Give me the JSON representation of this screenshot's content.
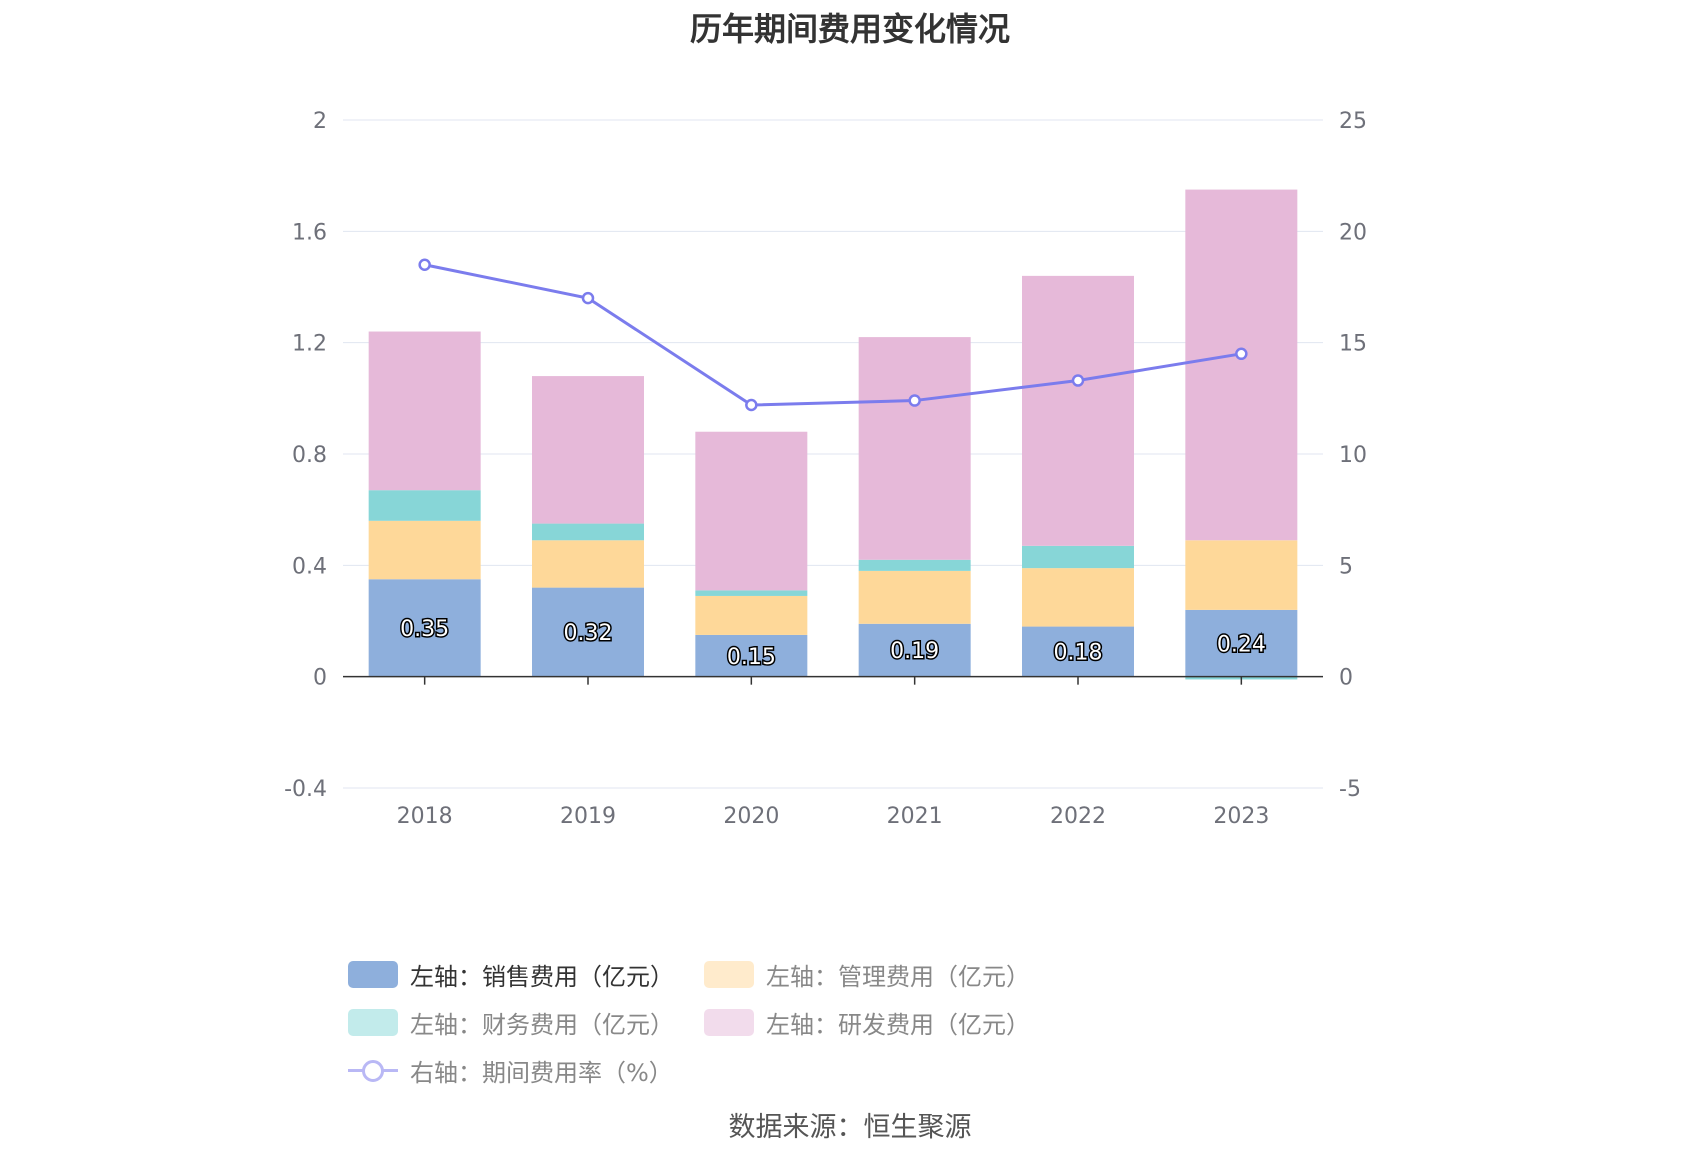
{
  "title": "历年期间费用变化情况",
  "source_text": "数据来源：恒生聚源",
  "colors": {
    "selling": "#8eafdc",
    "admin": "#fed899",
    "finance": "#87d6d7",
    "rnd": "#e6b9d9",
    "rate_line": "#7b7ced",
    "grid": "#e0e6f1",
    "axis": "#333333",
    "legend_admin": "#ffebcc",
    "legend_finance": "#c2ebeb",
    "legend_rnd": "#f2dcec"
  },
  "legend": [
    {
      "label": "左轴：销售费用（亿元）",
      "color": "#8eafdc",
      "active": true,
      "marker": "bar"
    },
    {
      "label": "左轴：管理费用（亿元）",
      "color": "#ffebcc",
      "active": false,
      "marker": "bar"
    },
    {
      "label": "左轴：财务费用（亿元）",
      "color": "#c2ebeb",
      "active": false,
      "marker": "bar"
    },
    {
      "label": "左轴：研发费用（亿元）",
      "color": "#f2dcec",
      "active": false,
      "marker": "bar"
    },
    {
      "label": "右轴：期间费用率（%）",
      "color": "#b9b8f5",
      "active": false,
      "marker": "line"
    }
  ],
  "chart_data": {
    "type": "bar",
    "stacked": true,
    "title": "历年期间费用变化情况",
    "categories": [
      "2018",
      "2019",
      "2020",
      "2021",
      "2022",
      "2023"
    ],
    "left_axis": {
      "ylim": [
        -0.4,
        2
      ],
      "ticks": [
        "-0.4",
        "0",
        "0.4",
        "0.8",
        "1.2",
        "1.6",
        "2"
      ],
      "tick_values": [
        -0.4,
        0,
        0.4,
        0.8,
        1.2,
        1.6,
        2
      ]
    },
    "right_axis": {
      "ylim": [
        -5,
        25
      ],
      "ticks": [
        "-5",
        "0",
        "5",
        "10",
        "15",
        "20",
        "25"
      ],
      "tick_values": [
        -5,
        0,
        5,
        10,
        15,
        20,
        25
      ]
    },
    "series": [
      {
        "name": "左轴：销售费用（亿元）",
        "axis": "left",
        "type": "bar",
        "values": [
          0.35,
          0.32,
          0.15,
          0.19,
          0.18,
          0.24
        ],
        "labels": [
          "0.35",
          "0.32",
          "0.15",
          "0.19",
          "0.18",
          "0.24"
        ]
      },
      {
        "name": "左轴：管理费用（亿元）",
        "axis": "left",
        "type": "bar",
        "values": [
          0.21,
          0.17,
          0.14,
          0.19,
          0.21,
          0.25
        ]
      },
      {
        "name": "左轴：财务费用（亿元）",
        "axis": "left",
        "type": "bar",
        "values": [
          0.11,
          0.06,
          0.02,
          0.04,
          0.08,
          -0.01
        ]
      },
      {
        "name": "左轴：研发费用（亿元）",
        "axis": "left",
        "type": "bar",
        "values": [
          0.57,
          0.53,
          0.57,
          0.8,
          0.97,
          1.26
        ]
      },
      {
        "name": "右轴：期间费用率（%）",
        "axis": "right",
        "type": "line",
        "values": [
          18.5,
          17.0,
          12.2,
          12.4,
          13.3,
          14.5
        ]
      }
    ],
    "grid": true,
    "legend_position": "bottom"
  }
}
